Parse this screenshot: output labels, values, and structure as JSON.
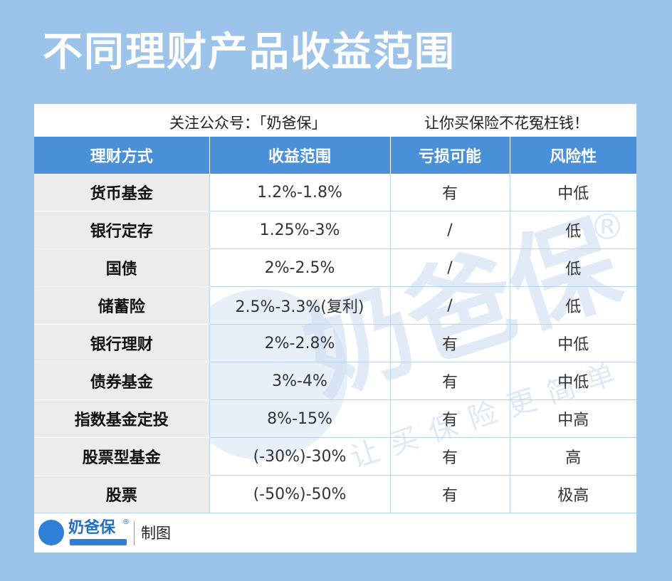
{
  "title": "不同理财产品收益范围",
  "subtitle_left": "关注公众号：「奶爸保」",
  "subtitle_right": "让你买保险不花冤枉钱！",
  "watermark": {
    "brand": "奶爸保",
    "reg": "®",
    "slogan": "让买保险更简单"
  },
  "table": {
    "headers": [
      "理财方式",
      "收益范围",
      "亏损可能",
      "风险性"
    ],
    "rows": [
      {
        "name": "货币基金",
        "range": "1.2%-1.8%",
        "loss": "有",
        "risk": "中低"
      },
      {
        "name": "银行定存",
        "range": "1.25%-3%",
        "loss": "/",
        "risk": "低"
      },
      {
        "name": "国债",
        "range": "2%-2.5%",
        "loss": "/",
        "risk": "低"
      },
      {
        "name": "储蓄险",
        "range": "2.5%-3.3%(复利)",
        "loss": "/",
        "risk": "低"
      },
      {
        "name": "银行理财",
        "range": "2%-2.8%",
        "loss": "有",
        "risk": "中低"
      },
      {
        "name": "债券基金",
        "range": "3%-4%",
        "loss": "有",
        "risk": "中低"
      },
      {
        "name": "指数基金定投",
        "range": "8%-15%",
        "loss": "有",
        "risk": "中高"
      },
      {
        "name": "股票型基金",
        "range": "(-30%)-30%",
        "loss": "有",
        "risk": "高"
      },
      {
        "name": "股票",
        "range": "(-50%)-50%",
        "loss": "有",
        "risk": "极高"
      }
    ]
  },
  "footer": {
    "logo_text": "奶爸保",
    "logo_reg": "®",
    "made_by": "制图"
  },
  "colors": {
    "background": "#9cc3ea",
    "header": "#4a90d9",
    "name_cell": "#ececec",
    "brand": "#1f6fc4"
  }
}
